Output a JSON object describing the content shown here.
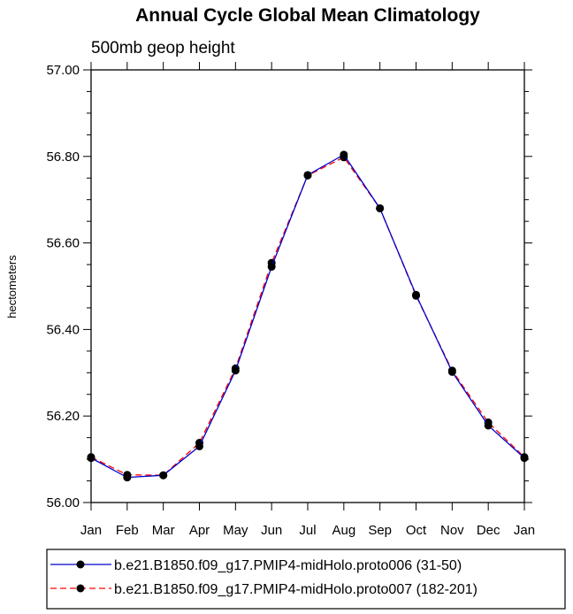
{
  "chart_data": {
    "type": "line",
    "title": "Annual Cycle Global Mean Climatology",
    "subtitle": "500mb geop height",
    "xlabel": "",
    "ylabel": "hectometers",
    "categories": [
      "Jan",
      "Feb",
      "Mar",
      "Apr",
      "May",
      "Jun",
      "Jul",
      "Aug",
      "Sep",
      "Oct",
      "Nov",
      "Dec",
      "Jan"
    ],
    "ylim": [
      56.0,
      57.0
    ],
    "yticks": [
      "56.00",
      "56.20",
      "56.40",
      "56.60",
      "56.80",
      "57.00"
    ],
    "grid": false,
    "legend_position": "bottom",
    "series": [
      {
        "name": "b.e21.B1850.f09_g17.PMIP4-midHolo.proto006 (31-50)",
        "color": "#0000cc",
        "line_style": "solid",
        "marker": "filled-circle",
        "values": [
          56.103,
          56.058,
          56.063,
          56.13,
          56.305,
          56.545,
          56.757,
          56.804,
          56.68,
          56.48,
          56.302,
          56.178,
          56.103
        ]
      },
      {
        "name": "b.e21.B1850.f09_g17.PMIP4-midHolo.proto007 (182-201)",
        "color": "#ff0000",
        "line_style": "dashed",
        "marker": "filled-circle",
        "values": [
          56.105,
          56.064,
          56.063,
          56.138,
          56.31,
          56.554,
          56.756,
          56.798,
          56.68,
          56.478,
          56.305,
          56.185,
          56.105
        ]
      }
    ]
  }
}
